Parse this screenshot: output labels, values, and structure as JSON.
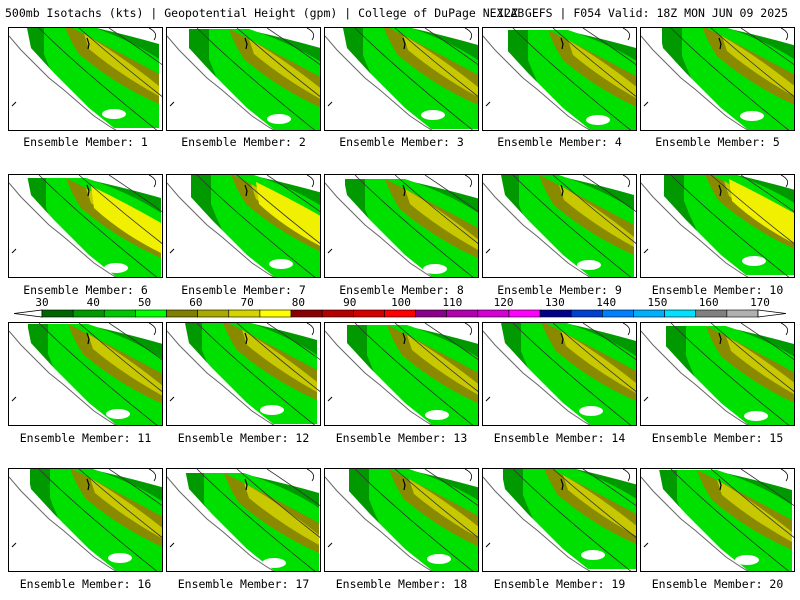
{
  "title_left": "500mb Isotachs (kts) | Geopotential Height (gpm) | College of DuPage NEXLAB",
  "title_right": "12Z GEFS | F054 Valid: 18Z MON JUN 09 2025",
  "members": [
    "Ensemble Member: 1",
    "Ensemble Member: 2",
    "Ensemble Member: 3",
    "Ensemble Member: 4",
    "Ensemble Member: 5",
    "Ensemble Member: 6",
    "Ensemble Member: 7",
    "Ensemble Member: 8",
    "Ensemble Member: 9",
    "Ensemble Member: 10",
    "Ensemble Member: 11",
    "Ensemble Member: 12",
    "Ensemble Member: 13",
    "Ensemble Member: 14",
    "Ensemble Member: 15",
    "Ensemble Member: 16",
    "Ensemble Member: 17",
    "Ensemble Member: 18",
    "Ensemble Member: 19",
    "Ensemble Member: 20"
  ],
  "colorbar": {
    "labels": [
      "30",
      "40",
      "50",
      "60",
      "70",
      "80",
      "90",
      "100",
      "110",
      "120",
      "130",
      "140",
      "150",
      "160",
      "170"
    ],
    "colors": [
      "#006400",
      "#009a00",
      "#00c800",
      "#00ff00",
      "#7f7f00",
      "#a9a900",
      "#d4d400",
      "#ffff00",
      "#8b0000",
      "#b30000",
      "#d40000",
      "#ff0000",
      "#8b008b",
      "#b000b0",
      "#d400d4",
      "#ff00ff",
      "#00008b",
      "#0040d0",
      "#0080ff",
      "#00b0ff",
      "#00e0ff",
      "#808080",
      "#b0b0b0"
    ]
  },
  "jet_colors": {
    "low": "#009a00",
    "mid": "#00e000",
    "med": "#8a8a00",
    "high": "#c8c800",
    "max": "#f0f000"
  }
}
